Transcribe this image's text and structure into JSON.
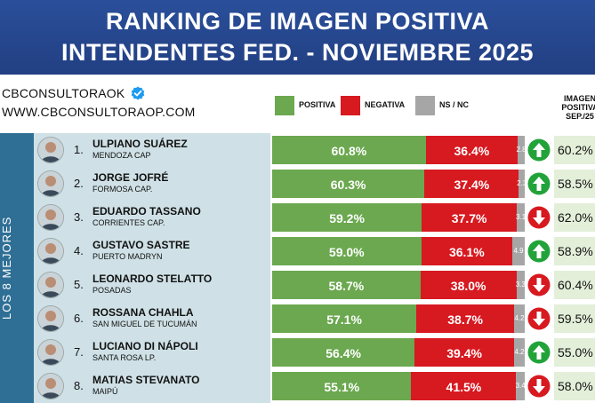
{
  "header": {
    "line1": "RANKING DE IMAGEN POSITIVA",
    "line2": "INTENDENTES FED. - NOVIEMBRE 2025"
  },
  "brand": {
    "handle": "CBCONSULTORAOK",
    "website": "WWW.CBCONSULTORAOP.COM"
  },
  "legend": {
    "positive": "POSITIVA",
    "negative": "NEGATIVA",
    "nsnc": "NS / NC"
  },
  "colors": {
    "positive": "#6ba84f",
    "negative": "#d71920",
    "nsnc": "#a6a6a6",
    "header_bg": "#223f82",
    "side_bg": "#2f6f95"
  },
  "prev_header": [
    "IMAGEN",
    "POSITIVA",
    "SEP./25"
  ],
  "side_label": "LOS 8 MEJORES",
  "chart_data": {
    "type": "bar",
    "stacked": true,
    "orientation": "horizontal",
    "series_names": [
      "POSITIVA",
      "NEGATIVA",
      "NS / NC"
    ],
    "rows": [
      {
        "rank": "1.",
        "name": "ULPIANO SUÁREZ",
        "city": "MENDOZA CAP",
        "positive": 60.8,
        "negative": 36.4,
        "nsnc": 2.8,
        "positive_label": "60.8%",
        "negative_label": "36.4%",
        "nsnc_label": "2.8",
        "trend": "up",
        "prev": 60.2,
        "prev_label": "60.2%"
      },
      {
        "rank": "2.",
        "name": "JORGE JOFRÉ",
        "city": "FORMOSA CAP.",
        "positive": 60.3,
        "negative": 37.4,
        "nsnc": 2.3,
        "positive_label": "60.3%",
        "negative_label": "37.4%",
        "nsnc_label": "2.3",
        "trend": "up",
        "prev": 58.5,
        "prev_label": "58.5%"
      },
      {
        "rank": "3.",
        "name": "EDUARDO TASSANO",
        "city": "CORRIENTES CAP.",
        "positive": 59.2,
        "negative": 37.7,
        "nsnc": 3.1,
        "positive_label": "59.2%",
        "negative_label": "37.7%",
        "nsnc_label": "3.1",
        "trend": "down",
        "prev": 62.0,
        "prev_label": "62.0%"
      },
      {
        "rank": "4.",
        "name": "GUSTAVO SASTRE",
        "city": "PUERTO MADRYN",
        "positive": 59.0,
        "negative": 36.1,
        "nsnc": 4.9,
        "positive_label": "59.0%",
        "negative_label": "36.1%",
        "nsnc_label": "4.9",
        "trend": "up",
        "prev": 58.9,
        "prev_label": "58.9%"
      },
      {
        "rank": "5.",
        "name": "LEONARDO STELATTO",
        "city": "POSADAS",
        "positive": 58.7,
        "negative": 38.0,
        "nsnc": 3.3,
        "positive_label": "58.7%",
        "negative_label": "38.0%",
        "nsnc_label": "3.3",
        "trend": "down",
        "prev": 60.4,
        "prev_label": "60.4%"
      },
      {
        "rank": "6.",
        "name": "ROSSANA CHAHLA",
        "city": "SAN MIGUEL DE TUCUMÁN",
        "positive": 57.1,
        "negative": 38.7,
        "nsnc": 4.2,
        "positive_label": "57.1%",
        "negative_label": "38.7%",
        "nsnc_label": "4.2",
        "trend": "down",
        "prev": 59.5,
        "prev_label": "59.5%"
      },
      {
        "rank": "7.",
        "name": "LUCIANO DI NÁPOLI",
        "city": "SANTA ROSA LP.",
        "positive": 56.4,
        "negative": 39.4,
        "nsnc": 4.2,
        "positive_label": "56.4%",
        "negative_label": "39.4%",
        "nsnc_label": "4.2",
        "trend": "up",
        "prev": 55.0,
        "prev_label": "55.0%"
      },
      {
        "rank": "8.",
        "name": "MATIAS STEVANATO",
        "city": "MAIPÚ",
        "positive": 55.1,
        "negative": 41.5,
        "nsnc": 3.4,
        "positive_label": "55.1%",
        "negative_label": "41.5%",
        "nsnc_label": "3.4",
        "trend": "down",
        "prev": 58.0,
        "prev_label": "58.0%"
      }
    ]
  }
}
